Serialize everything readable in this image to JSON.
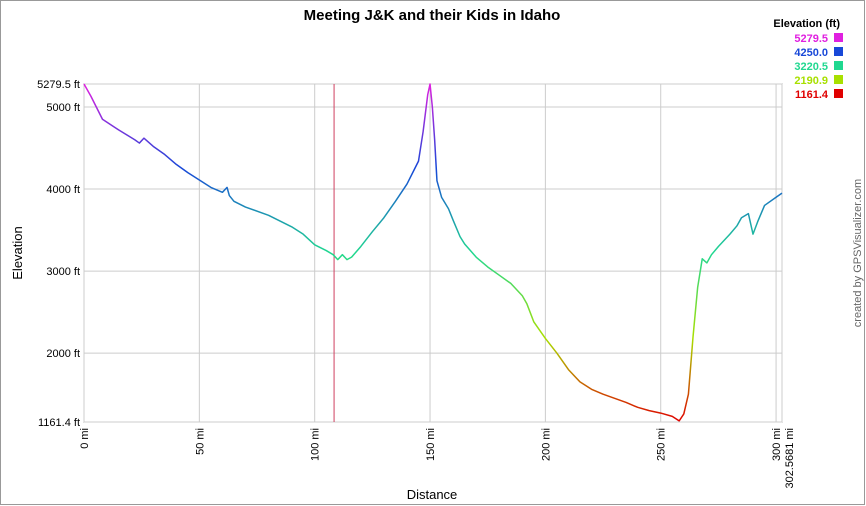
{
  "chart_data": {
    "type": "line",
    "title": "Meeting J&K and their Kids in Idaho",
    "x_label": "Distance",
    "y_label": "Elevation",
    "credit": "created by GPSVisualizer.com",
    "legend": {
      "title": "Elevation (ft)",
      "entries": [
        {
          "label": "5279.5",
          "value": 5279.5,
          "color": "#e020e0"
        },
        {
          "label": "4250.0",
          "value": 4250.0,
          "color": "#1848d8"
        },
        {
          "label": "3220.5",
          "value": 3220.5,
          "color": "#20d890"
        },
        {
          "label": "2190.9",
          "value": 2190.9,
          "color": "#a8e000"
        },
        {
          "label": "1161.4",
          "value": 1161.4,
          "color": "#e00000"
        }
      ]
    },
    "xlim": [
      0,
      302.5681
    ],
    "ylim": [
      1161.4,
      5279.5
    ],
    "xticks": [
      {
        "value": 0,
        "label": "0 mi"
      },
      {
        "value": 50,
        "label": "50 mi"
      },
      {
        "value": 100,
        "label": "100 mi"
      },
      {
        "value": 150,
        "label": "150 mi"
      },
      {
        "value": 200,
        "label": "200 mi"
      },
      {
        "value": 250,
        "label": "250 mi"
      },
      {
        "value": 300,
        "label": "300 mi"
      },
      {
        "value": 302.5681,
        "label": "302.5681 mi"
      }
    ],
    "yticks": [
      {
        "value": 1161.4,
        "label": "1161.4 ft"
      },
      {
        "value": 2000,
        "label": "2000 ft"
      },
      {
        "value": 3000,
        "label": "3000 ft"
      },
      {
        "value": 4000,
        "label": "4000 ft"
      },
      {
        "value": 5000,
        "label": "5000 ft"
      },
      {
        "value": 5279.5,
        "label": "5279.5 ft"
      }
    ],
    "grid": true,
    "cursor_x": 108.4,
    "cursor_color": "#d04060",
    "x": [
      0,
      3,
      8,
      15,
      22,
      24,
      26,
      30,
      35,
      40,
      45,
      50,
      55,
      60,
      62,
      63,
      65,
      70,
      80,
      90,
      95,
      100,
      105,
      108,
      110,
      112,
      114,
      116,
      120,
      125,
      130,
      135,
      140,
      145,
      147,
      149,
      150,
      151,
      152,
      153,
      155,
      158,
      160,
      163,
      165,
      170,
      175,
      180,
      185,
      190,
      192,
      195,
      200,
      205,
      210,
      215,
      220,
      225,
      230,
      235,
      240,
      245,
      250,
      255,
      258,
      260,
      262,
      264,
      266,
      268,
      270,
      272,
      275,
      280,
      283,
      285,
      288,
      290,
      292,
      295,
      300,
      302.5681
    ],
    "series": [
      {
        "name": "Elevation",
        "values": [
          5279,
          5130,
          4850,
          4720,
          4600,
          4560,
          4620,
          4520,
          4420,
          4300,
          4200,
          4110,
          4020,
          3960,
          4020,
          3920,
          3850,
          3780,
          3680,
          3540,
          3450,
          3320,
          3250,
          3200,
          3140,
          3200,
          3140,
          3170,
          3300,
          3480,
          3650,
          3850,
          4060,
          4340,
          4700,
          5150,
          5279,
          5000,
          4600,
          4100,
          3900,
          3760,
          3620,
          3420,
          3330,
          3170,
          3050,
          2950,
          2850,
          2700,
          2600,
          2380,
          2180,
          2000,
          1800,
          1650,
          1560,
          1500,
          1450,
          1400,
          1340,
          1300,
          1270,
          1230,
          1175,
          1260,
          1500,
          2200,
          2800,
          3150,
          3100,
          3200,
          3300,
          3450,
          3550,
          3650,
          3700,
          3450,
          3600,
          3800,
          3900,
          3950
        ]
      }
    ]
  }
}
